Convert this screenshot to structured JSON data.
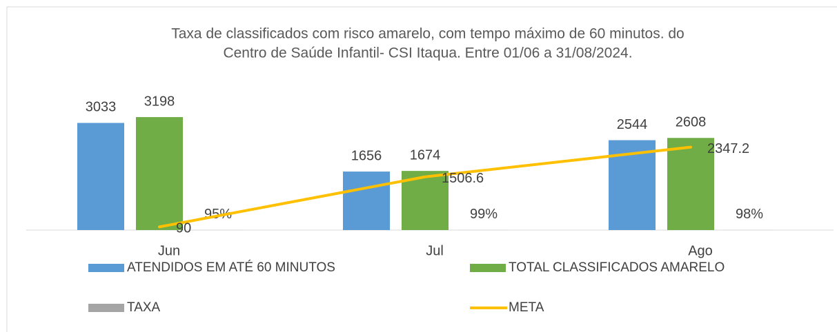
{
  "chart_data": {
    "type": "bar",
    "title": "Taxa de classificados com risco amarelo, com tempo máximo de 60 minutos. do",
    "subtitle": "Centro de Saúde Infantil- CSI Itaqua. Entre 01/06 a 31/08/2024.",
    "categories": [
      "Jun",
      "Jul",
      "Ago"
    ],
    "series": [
      {
        "name": "ATENDIDOS EM ATÉ 60 MINUTOS",
        "type": "bar",
        "color": "#5b9bd5",
        "values": [
          3033,
          1656,
          2544
        ]
      },
      {
        "name": "TOTAL CLASSIFICADOS AMARELO",
        "type": "bar",
        "color": "#70ad47",
        "values": [
          3198,
          1674,
          2608
        ]
      },
      {
        "name": "TAXA",
        "type": "bar",
        "color": "#a5a5a5",
        "values": [
          0.95,
          0.99,
          0.98
        ],
        "value_labels": [
          "95%",
          "99%",
          "98%"
        ]
      },
      {
        "name": "META",
        "type": "line",
        "color": "#ffc000",
        "values": [
          90,
          1506.6,
          2347.2
        ]
      }
    ],
    "ylim": [
      0,
      3500
    ],
    "legend": "bottom"
  }
}
